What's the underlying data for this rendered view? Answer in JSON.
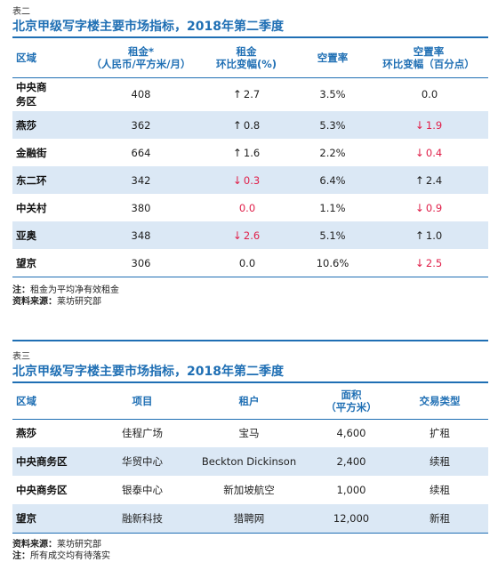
{
  "table2": {
    "tag": "表二",
    "title": "北京甲级写字楼主要市场指标，2018年第二季度",
    "headers": {
      "district": "区域",
      "rent_l1": "租金*",
      "rent_l2": "（人民币/平方米/月）",
      "rent_chg_l1": "租金",
      "rent_chg_l2": "环比变幅(%)",
      "vacancy": "空置率",
      "vac_chg_l1": "空置率",
      "vac_chg_l2": "环比变幅（百分点）"
    },
    "rows": [
      {
        "district_l1": "中央商",
        "district_l2": "务区",
        "rent": "408",
        "rent_arrow": "↑",
        "rent_chg": "2.7",
        "vacancy": "3.5%",
        "vac_arrow": "",
        "vac_chg": "0.0"
      },
      {
        "district_l1": "燕莎",
        "district_l2": "",
        "rent": "362",
        "rent_arrow": "↑",
        "rent_chg": "0.8",
        "vacancy": "5.3%",
        "vac_arrow": "↓",
        "vac_chg": "1.9"
      },
      {
        "district_l1": "金融街",
        "district_l2": "",
        "rent": "664",
        "rent_arrow": "↑",
        "rent_chg": "1.6",
        "vacancy": "2.2%",
        "vac_arrow": "↓",
        "vac_chg": "0.4"
      },
      {
        "district_l1": "东二环",
        "district_l2": "",
        "rent": "342",
        "rent_arrow": "↓",
        "rent_chg": "0.3",
        "vacancy": "6.4%",
        "vac_arrow": "↑",
        "vac_chg": "2.4"
      },
      {
        "district_l1": "中关村",
        "district_l2": "",
        "rent": "380",
        "rent_arrow": "",
        "rent_chg": "0.0",
        "vacancy": "1.1%",
        "vac_arrow": "↓",
        "vac_chg": "0.9"
      },
      {
        "district_l1": "亚奥",
        "district_l2": "",
        "rent": "348",
        "rent_arrow": "↓",
        "rent_chg": "2.6",
        "vacancy": "5.1%",
        "vac_arrow": "↑",
        "vac_chg": "1.0"
      },
      {
        "district_l1": "望京",
        "district_l2": "",
        "rent": "306",
        "rent_arrow": "",
        "rent_chg": "0.0",
        "vacancy": "10.6%",
        "vac_arrow": "↓",
        "vac_chg": "2.5"
      }
    ],
    "note_label": "注：",
    "note_text": "租金为平均净有效租金",
    "source_label": "资料来源：",
    "source_text": "莱坊研究部"
  },
  "table3": {
    "tag": "表三",
    "title": "北京甲级写字楼主要市场指标，2018年第二季度",
    "headers": {
      "district": "区域",
      "project": "项目",
      "tenant": "租户",
      "area_l1": "面积",
      "area_l2": "（平方米）",
      "type": "交易类型"
    },
    "rows": [
      {
        "district": "燕莎",
        "project": "佳程广场",
        "tenant": "宝马",
        "area": "4,600",
        "type": "扩租"
      },
      {
        "district": "中央商务区",
        "project": "华贸中心",
        "tenant": "Beckton Dickinson",
        "area": "2,400",
        "type": "续租"
      },
      {
        "district": "中央商务区",
        "project": "银泰中心",
        "tenant": "新加坡航空",
        "area": "1,000",
        "type": "续租"
      },
      {
        "district": "望京",
        "project": "融新科技",
        "tenant": "猎聘网",
        "area": "12,000",
        "type": "新租"
      }
    ],
    "source_label": "资料来源：",
    "source_text": "莱坊研究部",
    "note_label": "注：",
    "note_text": "所有成交均有待落实"
  },
  "colors": {
    "accent": "#1f6fb4",
    "row_alt": "#dbe8f5",
    "negative": "#e0204a"
  }
}
